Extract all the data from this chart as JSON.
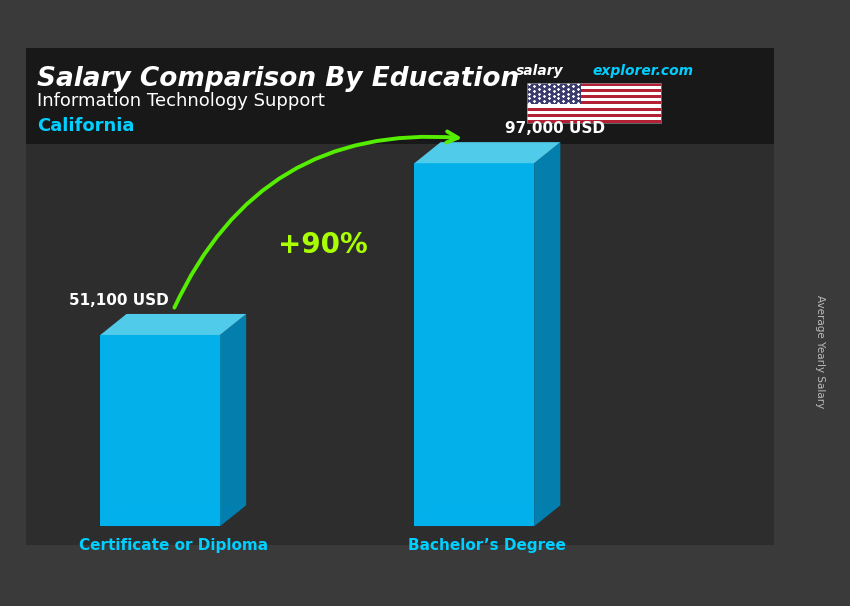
{
  "title_main": "Salary Comparison By Education",
  "title_sub": "Information Technology Support",
  "title_loc": "California",
  "categories": [
    "Certificate or Diploma",
    "Bachelor’s Degree"
  ],
  "values": [
    51100,
    97000
  ],
  "value_labels": [
    "51,100 USD",
    "97,000 USD"
  ],
  "pct_change": "+90%",
  "bar_face_color": "#00BFFF",
  "bar_top_color": "#55DDFF",
  "bar_side_color": "#0088BB",
  "bar_bottom_color": "#005577",
  "ylabel": "Average Yearly Salary",
  "bg_color": "#3a3a3a",
  "overlay_alpha": 0.55,
  "title_color": "#FFFFFF",
  "subtitle_color": "#FFFFFF",
  "loc_color": "#00CFFF",
  "label_color": "#FFFFFF",
  "pct_color": "#AAFF00",
  "cat_color": "#00CFFF",
  "arrow_color": "#55EE00",
  "ylabel_color": "#BBBBBB",
  "website_white": "salary",
  "website_cyan": "explorer.com"
}
